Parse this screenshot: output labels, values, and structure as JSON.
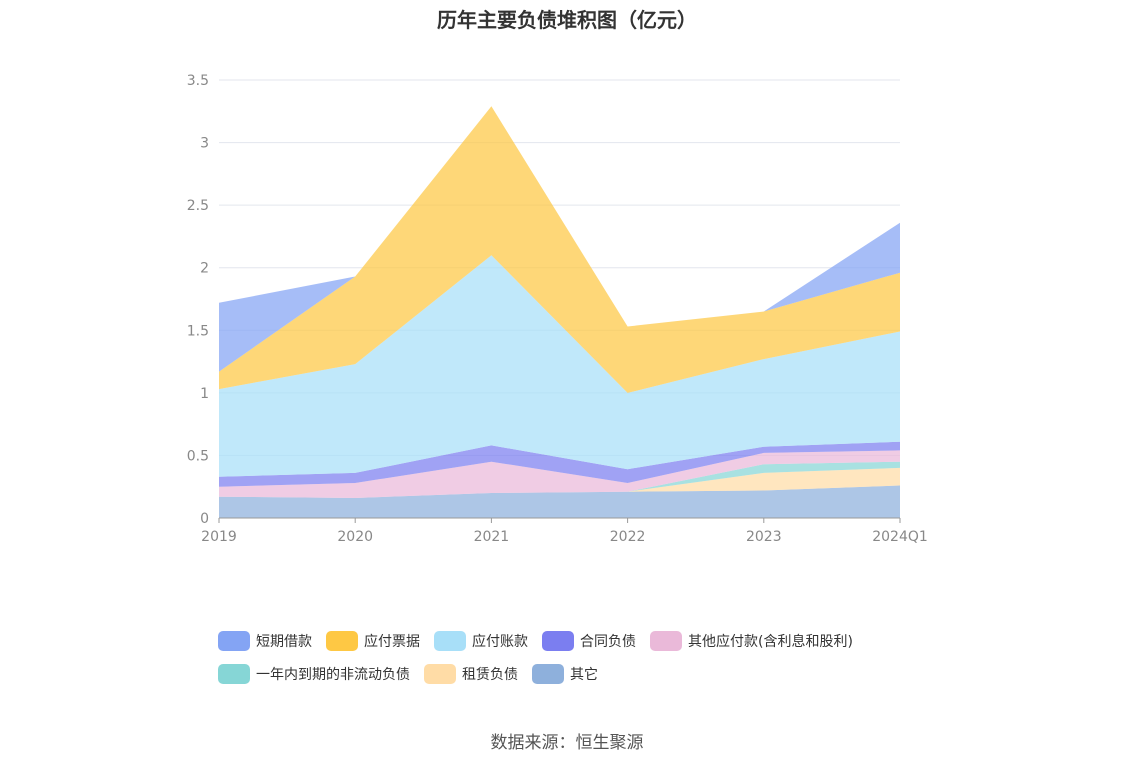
{
  "title": "历年主要负债堆积图（亿元）",
  "source": "数据来源：恒生聚源",
  "chart_data": {
    "type": "area",
    "stacked": true,
    "title": "历年主要负债堆积图（亿元）",
    "categories": [
      "2019",
      "2020",
      "2021",
      "2022",
      "2023",
      "2024Q1"
    ],
    "ylim": [
      0,
      3.5
    ],
    "yticks": [
      "0",
      "0.5",
      "1",
      "1.5",
      "2",
      "2.5",
      "3",
      "3.5"
    ],
    "grid": true,
    "legend_position": "bottom",
    "series": [
      {
        "name": "其它",
        "color": "#8eb0dc",
        "values": [
          0.17,
          0.16,
          0.2,
          0.21,
          0.22,
          0.26
        ]
      },
      {
        "name": "租赁负债",
        "color": "#ffdca6",
        "values": [
          0.0,
          0.0,
          0.0,
          0.0,
          0.14,
          0.14
        ]
      },
      {
        "name": "一年内到期的非流动负债",
        "color": "#86d6d6",
        "values": [
          0.0,
          0.0,
          0.0,
          0.0,
          0.07,
          0.05
        ]
      },
      {
        "name": "其他应付款(含利息和股利)",
        "color": "#eab9d9",
        "values": [
          0.08,
          0.12,
          0.25,
          0.07,
          0.09,
          0.09
        ]
      },
      {
        "name": "合同负债",
        "color": "#7b7ef0",
        "values": [
          0.08,
          0.08,
          0.13,
          0.11,
          0.05,
          0.07
        ]
      },
      {
        "name": "应付账款",
        "color": "#a8dff8",
        "values": [
          0.7,
          0.87,
          1.52,
          0.61,
          0.7,
          0.88
        ]
      },
      {
        "name": "应付票据",
        "color": "#fec844",
        "values": [
          0.14,
          0.7,
          1.19,
          0.53,
          0.38,
          0.47
        ]
      },
      {
        "name": "短期借款",
        "color": "#84a4f4",
        "values": [
          0.55,
          0.0,
          0.0,
          0.0,
          0.0,
          0.4
        ]
      }
    ]
  },
  "legend": {
    "row1": [
      {
        "label": "短期借款",
        "color": "#84a4f4"
      },
      {
        "label": "应付票据",
        "color": "#fec844"
      },
      {
        "label": "应付账款",
        "color": "#a8dff8"
      },
      {
        "label": "合同负债",
        "color": "#7b7ef0"
      },
      {
        "label": "其他应付款(含利息和股利)",
        "color": "#eab9d9"
      }
    ],
    "row2": [
      {
        "label": "一年内到期的非流动负债",
        "color": "#86d6d6"
      },
      {
        "label": "租赁负债",
        "color": "#ffdca6"
      },
      {
        "label": "其它",
        "color": "#8eb0dc"
      }
    ]
  }
}
